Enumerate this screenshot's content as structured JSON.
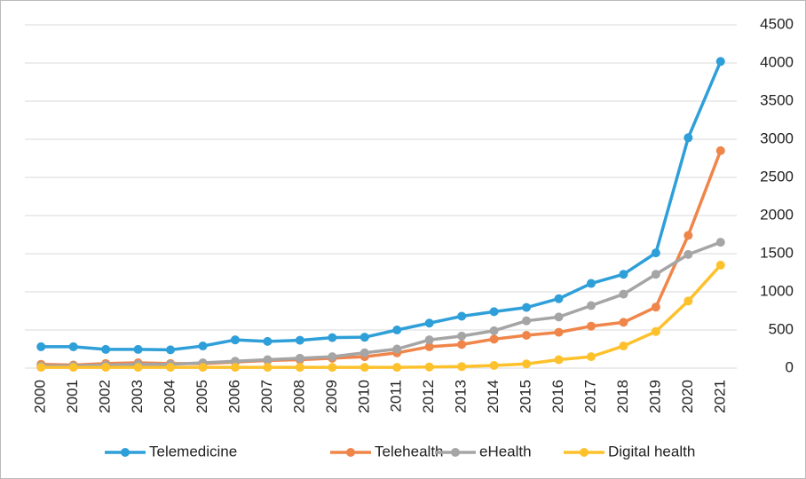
{
  "chart_data": {
    "type": "line",
    "categories": [
      "2000",
      "2001",
      "2002",
      "2003",
      "2004",
      "2005",
      "2006",
      "2007",
      "2008",
      "2009",
      "2010",
      "2011",
      "2012",
      "2013",
      "2014",
      "2015",
      "2016",
      "2017",
      "2018",
      "2019",
      "2020",
      "2021"
    ],
    "series": [
      {
        "name": "Telemedicine",
        "color": "#2e9fd8",
        "values": [
          280,
          280,
          245,
          245,
          240,
          290,
          370,
          350,
          365,
          400,
          405,
          500,
          590,
          680,
          740,
          795,
          910,
          1110,
          1230,
          1510,
          3020,
          4020
        ]
      },
      {
        "name": "Telehealth",
        "color": "#f0854a",
        "values": [
          50,
          40,
          60,
          70,
          60,
          60,
          80,
          100,
          110,
          130,
          150,
          200,
          280,
          310,
          380,
          430,
          470,
          550,
          600,
          800,
          1740,
          2850
        ]
      },
      {
        "name": "eHealth",
        "color": "#a5a5a5",
        "values": [
          30,
          30,
          40,
          50,
          50,
          70,
          90,
          110,
          130,
          150,
          200,
          250,
          370,
          420,
          490,
          620,
          670,
          820,
          970,
          1230,
          1490,
          1650
        ]
      },
      {
        "name": "Digital health",
        "color": "#fdc12b",
        "values": [
          10,
          10,
          10,
          10,
          10,
          10,
          10,
          10,
          10,
          10,
          10,
          10,
          15,
          20,
          35,
          55,
          110,
          150,
          290,
          480,
          880,
          1350
        ]
      }
    ],
    "ylim": [
      0,
      4500
    ],
    "yticks": [
      0,
      500,
      1000,
      1500,
      2000,
      2500,
      3000,
      3500,
      4000,
      4500
    ],
    "grid": true,
    "legend": "bottom"
  }
}
